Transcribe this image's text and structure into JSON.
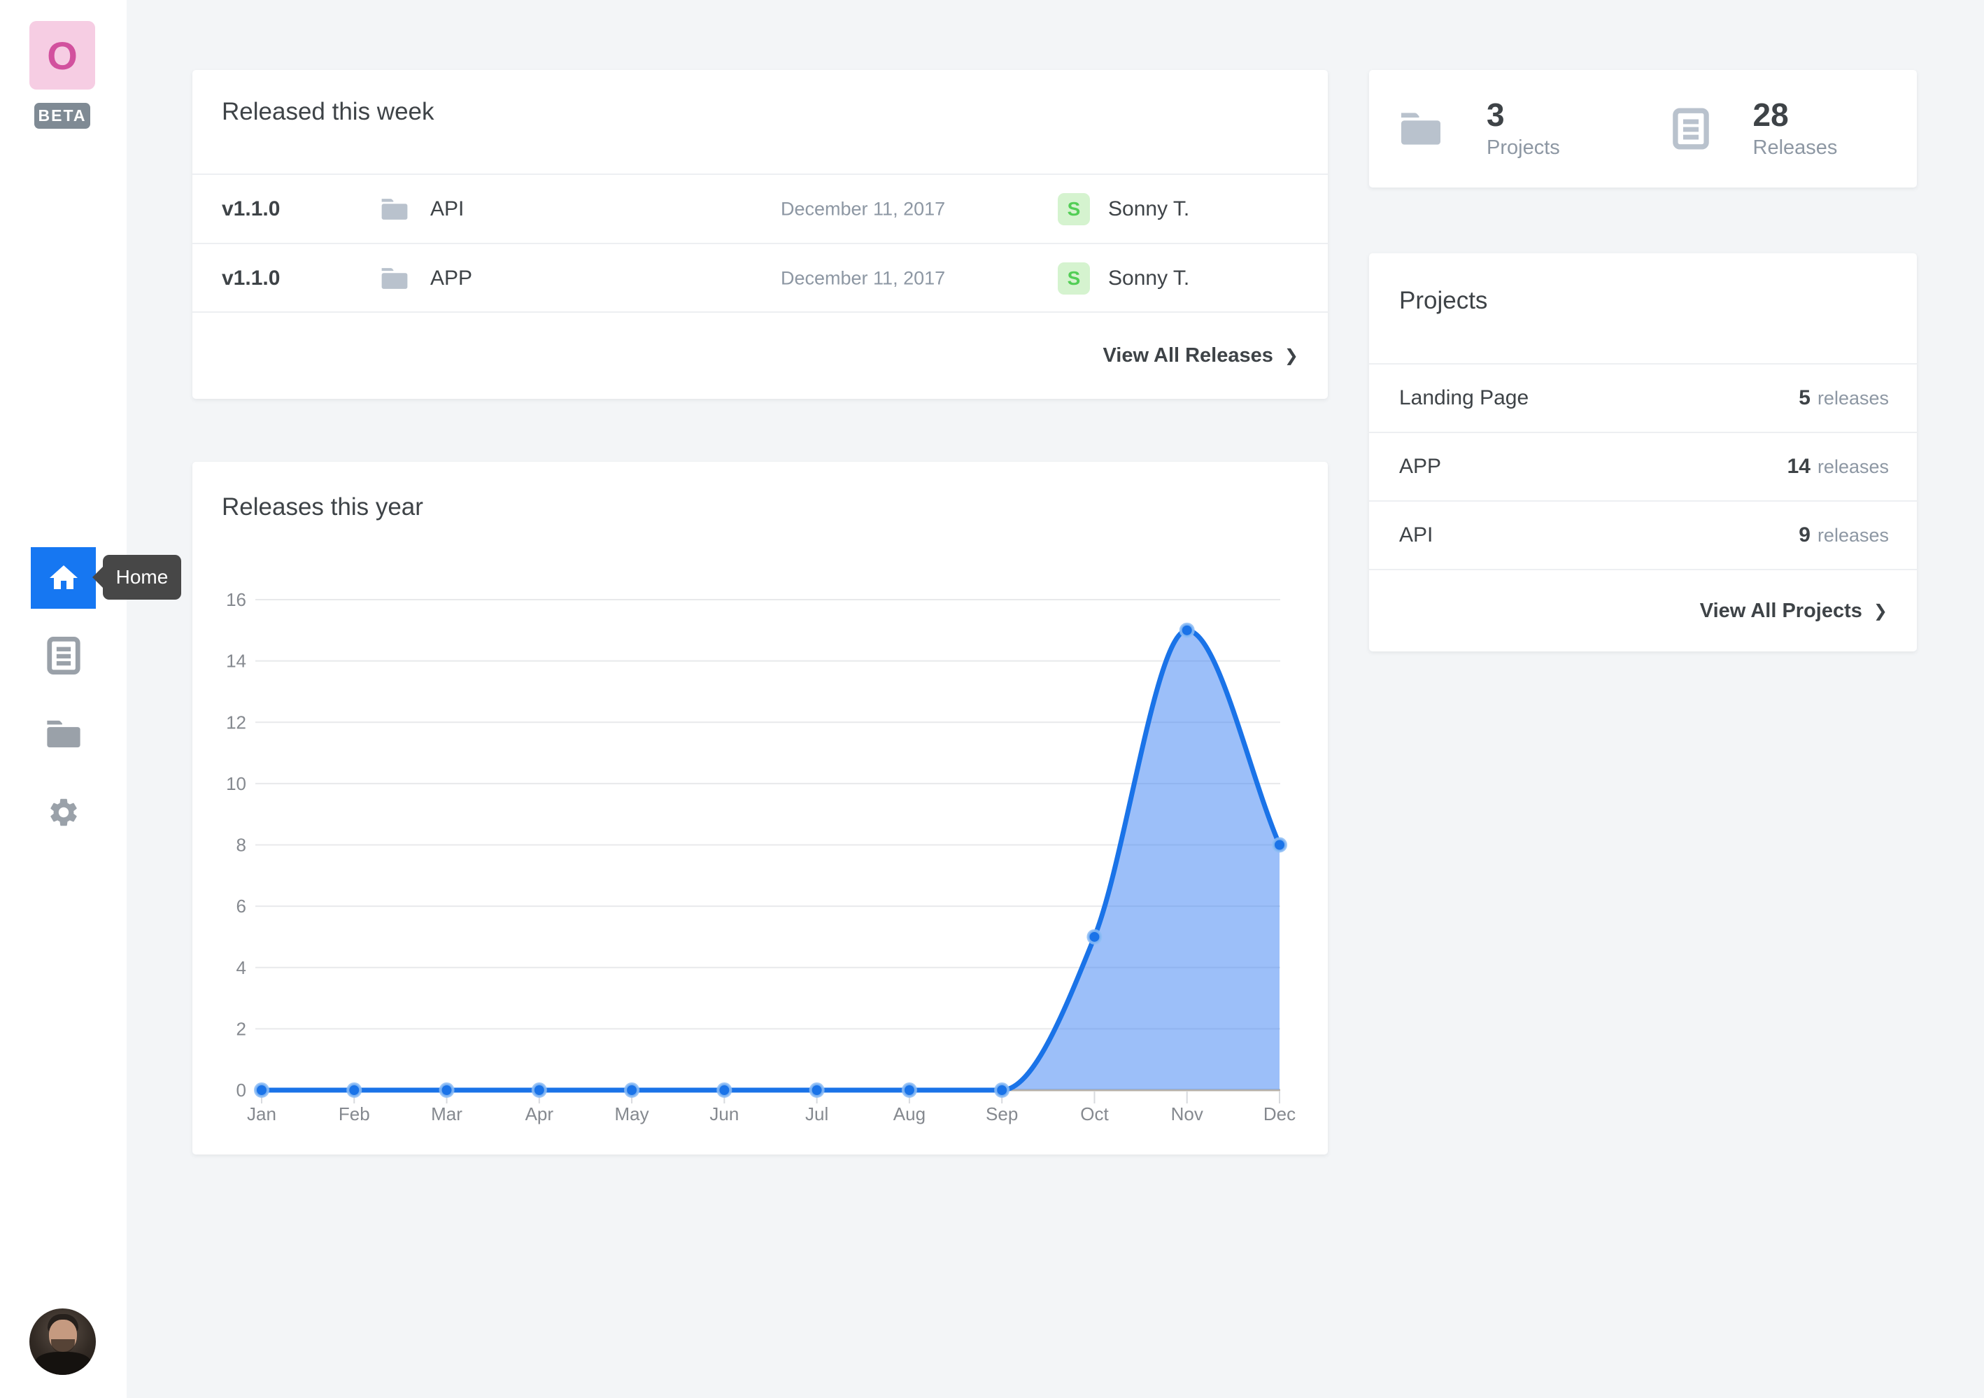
{
  "sidebar": {
    "logo_letter": "O",
    "beta_label": "BETA",
    "tooltip": "Home",
    "nav": [
      {
        "id": "home",
        "label": "Home",
        "active": true
      },
      {
        "id": "releases"
      },
      {
        "id": "projects"
      },
      {
        "id": "settings"
      }
    ]
  },
  "released": {
    "title": "Released this week",
    "rows": [
      {
        "version": "v1.1.0",
        "project": "API",
        "date": "December 11, 2017",
        "author_initial": "S",
        "author": "Sonny T."
      },
      {
        "version": "v1.1.0",
        "project": "APP",
        "date": "December 11, 2017",
        "author_initial": "S",
        "author": "Sonny T."
      }
    ],
    "view_all": "View All Releases",
    "chevron": "❯"
  },
  "chart_card": {
    "title": "Releases this year"
  },
  "chart_data": {
    "type": "area",
    "title": "Releases this year",
    "x": [
      "Jan",
      "Feb",
      "Mar",
      "Apr",
      "May",
      "Jun",
      "Jul",
      "Aug",
      "Sep",
      "Oct",
      "Nov",
      "Dec"
    ],
    "series": [
      {
        "name": "Releases",
        "values": [
          0,
          0,
          0,
          0,
          0,
          0,
          0,
          0,
          0,
          5,
          15,
          8
        ]
      }
    ],
    "ylim": [
      0,
      16
    ],
    "yticks": [
      0,
      2,
      4,
      6,
      8,
      10,
      12,
      14,
      16
    ],
    "grid": true,
    "legend": false,
    "line_color": "#1a73e8",
    "fill_color": "rgba(66,133,244,0.52)",
    "marker_halo": "rgba(140,188,245,0.85)",
    "axis_color": "#b6b0a9",
    "grid_color": "#e8e9eb",
    "tick_color": "#d8dade",
    "label_color": "#85898f"
  },
  "stats": {
    "projects": {
      "value": "3",
      "label": "Projects"
    },
    "releases": {
      "value": "28",
      "label": "Releases"
    }
  },
  "projects_card": {
    "title": "Projects",
    "rows": [
      {
        "name": "Landing Page",
        "count": "5",
        "unit": "releases"
      },
      {
        "name": "APP",
        "count": "14",
        "unit": "releases"
      },
      {
        "name": "API",
        "count": "9",
        "unit": "releases"
      }
    ],
    "view_all": "View All Projects",
    "chevron": "❯"
  },
  "colors": {
    "accent_blue": "#1677f2",
    "chart_line": "#1a73e8",
    "badge_green_bg": "#d5f3cf",
    "badge_green_text": "#52ce55",
    "logo_pink_bg": "#f6cde3",
    "logo_pink_text": "#d2519e",
    "beta_gray": "#7f8a94",
    "tooltip_gray": "#474747",
    "page_bg": "#f3f5f7"
  }
}
